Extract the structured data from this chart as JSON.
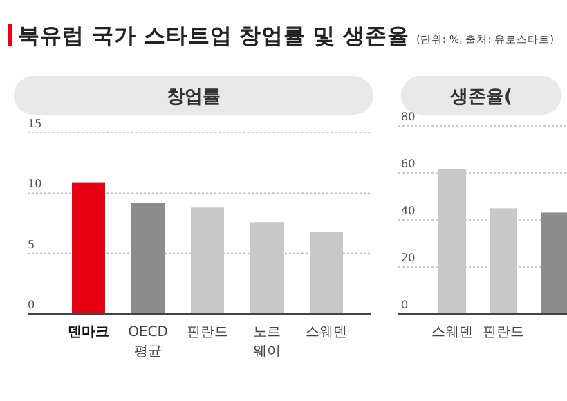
{
  "chart_data": [
    {
      "type": "bar",
      "title": "창업률",
      "annotations": [
        "북유럽 국가 스타트업 창업률 및 생존율",
        "(단위: %, 출처: 유로스타트)"
      ],
      "categories": [
        "덴마크",
        "OECD\n평균",
        "핀란드",
        "노르\n웨이",
        "스웨덴"
      ],
      "values": [
        10.9,
        9.2,
        8.8,
        7.6,
        6.8
      ],
      "colors": [
        "#e60012",
        "#8c8c8c",
        "#c8c8c8",
        "#c8c8c8",
        "#c8c8c8"
      ],
      "ylim": [
        0,
        15
      ],
      "yticks": [
        0,
        5,
        10,
        15
      ],
      "grid": "y"
    },
    {
      "type": "bar",
      "title": "생존율(",
      "categories": [
        "스웨덴",
        "핀란드",
        null
      ],
      "values": [
        61.6,
        44.9,
        43.1
      ],
      "colors": [
        "#c8c8c8",
        "#c8c8c8",
        "#8c8c8c"
      ],
      "ylim": [
        0,
        80
      ],
      "yticks": [
        0,
        20,
        40,
        60,
        80
      ],
      "grid": "y"
    }
  ]
}
